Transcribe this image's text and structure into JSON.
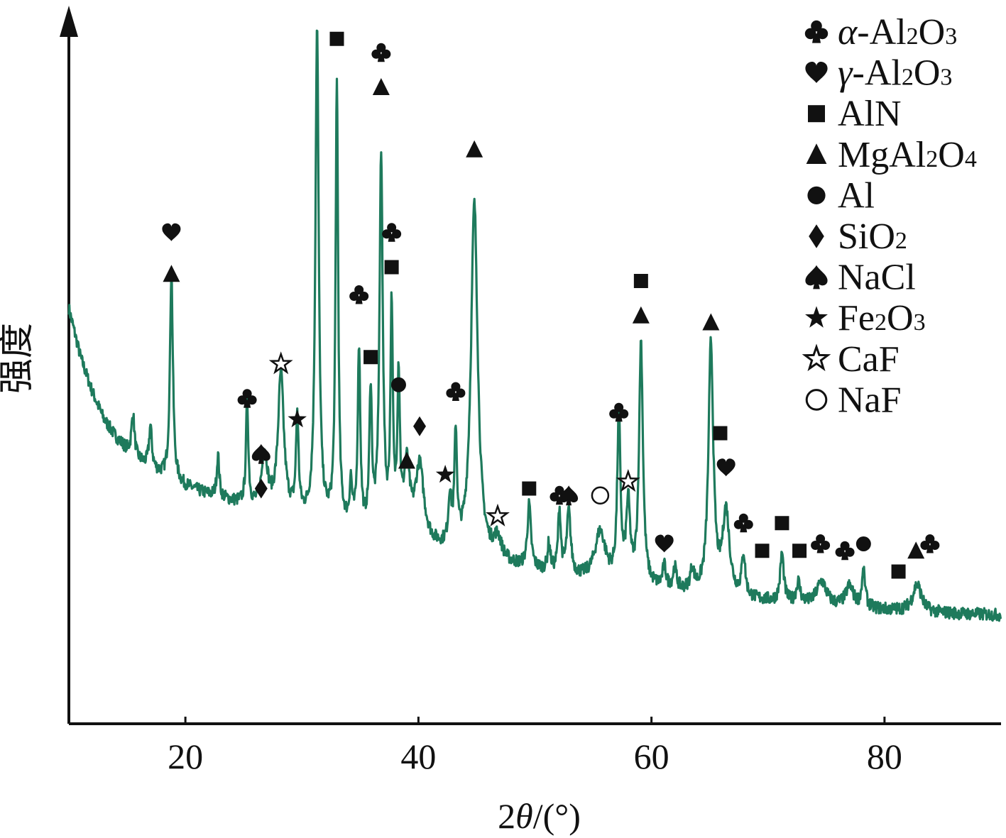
{
  "chart_data": {
    "type": "line",
    "xlabel": "2θ/(°)",
    "ylabel": "强度",
    "xlim": [
      10,
      90
    ],
    "ylim": [
      0,
      100
    ],
    "x_ticks": [
      20,
      40,
      60,
      80
    ],
    "y_ticks": [],
    "line_color": "#1e7a5c",
    "grid": false,
    "legend_position": "top-right",
    "baseline": [
      [
        10,
        60
      ],
      [
        11,
        53
      ],
      [
        12,
        48
      ],
      [
        13,
        44
      ],
      [
        14,
        41.5
      ],
      [
        15,
        39.5
      ],
      [
        16,
        38
      ],
      [
        17,
        36.8
      ],
      [
        18,
        35.8
      ],
      [
        19,
        35
      ],
      [
        20,
        34.2
      ],
      [
        22,
        33
      ],
      [
        24,
        32
      ],
      [
        26,
        31
      ],
      [
        28,
        30.2
      ],
      [
        30,
        29.5
      ],
      [
        32,
        28.8
      ],
      [
        34,
        28
      ],
      [
        36,
        27
      ],
      [
        38,
        26.3
      ],
      [
        40,
        25.5
      ],
      [
        42,
        24.8
      ],
      [
        44,
        24
      ],
      [
        46,
        23.3
      ],
      [
        48,
        22.6
      ],
      [
        50,
        22
      ],
      [
        52,
        21.4
      ],
      [
        54,
        20.8
      ],
      [
        56,
        20.3
      ],
      [
        58,
        19.8
      ],
      [
        60,
        19.4
      ],
      [
        62,
        19
      ],
      [
        64,
        18.6
      ],
      [
        66,
        18.2
      ],
      [
        68,
        17.9
      ],
      [
        70,
        17.6
      ],
      [
        72,
        17.3
      ],
      [
        74,
        17
      ],
      [
        76,
        16.8
      ],
      [
        78,
        16.6
      ],
      [
        80,
        16.4
      ],
      [
        82,
        16.2
      ],
      [
        84,
        16
      ],
      [
        86,
        15.9
      ],
      [
        88,
        15.8
      ],
      [
        90,
        15.7
      ]
    ],
    "peaks": [
      [
        15.5,
        6,
        0.15
      ],
      [
        17.0,
        6,
        0.15
      ],
      [
        18.8,
        30,
        0.15
      ],
      [
        22.8,
        6,
        0.13
      ],
      [
        25.3,
        15,
        0.12
      ],
      [
        26.8,
        8,
        0.3
      ],
      [
        28.2,
        20,
        0.3
      ],
      [
        29.6,
        14,
        0.13
      ],
      [
        31.3,
        71,
        0.17
      ],
      [
        33.0,
        64,
        0.13
      ],
      [
        34.2,
        6,
        0.12
      ],
      [
        34.9,
        26,
        0.13
      ],
      [
        35.9,
        20,
        0.13
      ],
      [
        36.8,
        54,
        0.17
      ],
      [
        37.7,
        32,
        0.12
      ],
      [
        38.3,
        22,
        0.13
      ],
      [
        39.0,
        10,
        0.3
      ],
      [
        40.1,
        11,
        0.45
      ],
      [
        42.7,
        7,
        0.15
      ],
      [
        43.2,
        16,
        0.13
      ],
      [
        44.8,
        51,
        0.35
      ],
      [
        46.8,
        3,
        0.4
      ],
      [
        49.5,
        9,
        0.18
      ],
      [
        51.2,
        4,
        0.14
      ],
      [
        52.1,
        9,
        0.14
      ],
      [
        52.9,
        9,
        0.2
      ],
      [
        55.6,
        7,
        0.55
      ],
      [
        57.2,
        24,
        0.16
      ],
      [
        58.0,
        11,
        0.2
      ],
      [
        59.1,
        35,
        0.2
      ],
      [
        61.1,
        3,
        0.18
      ],
      [
        62.0,
        3,
        0.18
      ],
      [
        63.5,
        3,
        0.2
      ],
      [
        65.1,
        36,
        0.25
      ],
      [
        66.4,
        12,
        0.35
      ],
      [
        67.9,
        6,
        0.18
      ],
      [
        71.2,
        7,
        0.18
      ],
      [
        72.6,
        3,
        0.2
      ],
      [
        74.6,
        3.5,
        0.5
      ],
      [
        77.0,
        3,
        0.4
      ],
      [
        78.2,
        5,
        0.18
      ],
      [
        82.8,
        4,
        0.45
      ]
    ],
    "annotations": [
      {
        "phase": "γ-Al2O3",
        "x": 18.8,
        "y": 71
      },
      {
        "phase": "MgAl2O4",
        "x": 18.8,
        "y": 65
      },
      {
        "phase": "α-Al2O3",
        "x": 25.3,
        "y": 47
      },
      {
        "phase": "SiO2",
        "x": 26.5,
        "y": 34
      },
      {
        "phase": "NaCl",
        "x": 26.5,
        "y": 39
      },
      {
        "phase": "CaF",
        "x": 28.2,
        "y": 52
      },
      {
        "phase": "Fe2O3",
        "x": 29.6,
        "y": 44
      },
      {
        "phase": "MgAl2O4",
        "x": 31.3,
        "y": 107
      },
      {
        "phase": "AlN",
        "x": 33.0,
        "y": 99
      },
      {
        "phase": "α-Al2O3",
        "x": 34.9,
        "y": 62
      },
      {
        "phase": "AlN",
        "x": 35.9,
        "y": 53
      },
      {
        "phase": "α-Al2O3",
        "x": 36.8,
        "y": 97
      },
      {
        "phase": "MgAl2O4",
        "x": 36.8,
        "y": 92
      },
      {
        "phase": "α-Al2O3",
        "x": 37.7,
        "y": 71
      },
      {
        "phase": "AlN",
        "x": 37.7,
        "y": 66
      },
      {
        "phase": "Al",
        "x": 38.3,
        "y": 49
      },
      {
        "phase": "MgAl2O4",
        "x": 39.0,
        "y": 38
      },
      {
        "phase": "SiO2",
        "x": 40.1,
        "y": 43
      },
      {
        "phase": "Fe2O3",
        "x": 42.3,
        "y": 36
      },
      {
        "phase": "α-Al2O3",
        "x": 43.2,
        "y": 48
      },
      {
        "phase": "MgAl2O4",
        "x": 44.8,
        "y": 83
      },
      {
        "phase": "CaF",
        "x": 46.8,
        "y": 30
      },
      {
        "phase": "AlN",
        "x": 49.5,
        "y": 34
      },
      {
        "phase": "α-Al2O3",
        "x": 52.1,
        "y": 33
      },
      {
        "phase": "NaCl",
        "x": 52.9,
        "y": 33
      },
      {
        "phase": "NaF",
        "x": 55.6,
        "y": 33
      },
      {
        "phase": "α-Al2O3",
        "x": 57.2,
        "y": 45
      },
      {
        "phase": "CaF",
        "x": 58.0,
        "y": 35
      },
      {
        "phase": "AlN",
        "x": 59.1,
        "y": 64
      },
      {
        "phase": "MgAl2O4",
        "x": 59.1,
        "y": 59
      },
      {
        "phase": "γ-Al2O3",
        "x": 61.1,
        "y": 26
      },
      {
        "phase": "MgAl2O4",
        "x": 65.1,
        "y": 58
      },
      {
        "phase": "AlN",
        "x": 65.9,
        "y": 42
      },
      {
        "phase": "γ-Al2O3",
        "x": 66.4,
        "y": 37
      },
      {
        "phase": "α-Al2O3",
        "x": 67.9,
        "y": 29
      },
      {
        "phase": "AlN",
        "x": 69.5,
        "y": 25
      },
      {
        "phase": "AlN",
        "x": 71.2,
        "y": 29
      },
      {
        "phase": "AlN",
        "x": 72.7,
        "y": 25
      },
      {
        "phase": "α-Al2O3",
        "x": 74.5,
        "y": 26
      },
      {
        "phase": "α-Al2O3",
        "x": 76.6,
        "y": 25
      },
      {
        "phase": "Al",
        "x": 78.2,
        "y": 26
      },
      {
        "phase": "AlN",
        "x": 81.2,
        "y": 22
      },
      {
        "phase": "MgAl2O4",
        "x": 82.7,
        "y": 25
      },
      {
        "phase": "α-Al2O3",
        "x": 83.9,
        "y": 26
      }
    ],
    "legend": [
      {
        "key": "α-Al2O3",
        "symbol": "club",
        "prefix": "α",
        "rest": "-Al",
        "sub1": "2",
        "mid": "O",
        "sub2": "3"
      },
      {
        "key": "γ-Al2O3",
        "symbol": "heart",
        "prefix": "γ",
        "rest": "-Al",
        "sub1": "2",
        "mid": "O",
        "sub2": "3"
      },
      {
        "key": "AlN",
        "symbol": "square",
        "prefix": "",
        "rest": "AlN",
        "sub1": "",
        "mid": "",
        "sub2": ""
      },
      {
        "key": "MgAl2O4",
        "symbol": "triangle",
        "prefix": "",
        "rest": "MgAl",
        "sub1": "2",
        "mid": "O",
        "sub2": "4"
      },
      {
        "key": "Al",
        "symbol": "circle",
        "prefix": "",
        "rest": "Al",
        "sub1": "",
        "mid": "",
        "sub2": ""
      },
      {
        "key": "SiO2",
        "symbol": "diamond",
        "prefix": "",
        "rest": "SiO",
        "sub1": "2",
        "mid": "",
        "sub2": ""
      },
      {
        "key": "NaCl",
        "symbol": "spade",
        "prefix": "",
        "rest": "NaCl",
        "sub1": "",
        "mid": "",
        "sub2": ""
      },
      {
        "key": "Fe2O3",
        "symbol": "star",
        "prefix": "",
        "rest": "Fe",
        "sub1": "2",
        "mid": "O",
        "sub2": "3"
      },
      {
        "key": "CaF",
        "symbol": "star-open",
        "prefix": "",
        "rest": "CaF",
        "sub1": "",
        "mid": "",
        "sub2": ""
      },
      {
        "key": "NaF",
        "symbol": "circle-open",
        "prefix": "",
        "rest": "NaF",
        "sub1": "",
        "mid": "",
        "sub2": ""
      }
    ]
  }
}
